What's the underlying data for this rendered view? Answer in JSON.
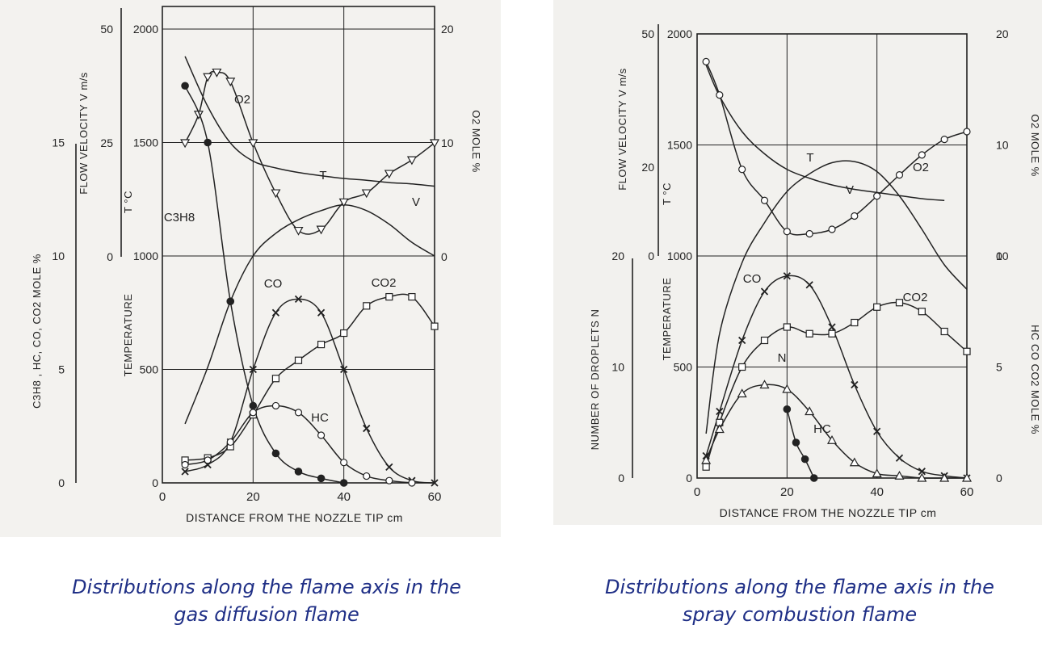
{
  "captions": {
    "left": {
      "line1": "Distributions along the flame axis in the",
      "line2": "gas diffusion flame"
    },
    "right": {
      "line1": "Distributions along the flame axis in the",
      "line2": "spray combustion flame"
    }
  },
  "colors": {
    "ink": "#222222",
    "caption": "#1f2f86",
    "paper": "#f3f2ef"
  },
  "chart_data": [
    {
      "type": "line",
      "xlabel": "DISTANCE FROM THE NOZZLE TIP   cm",
      "xlim": [
        0,
        60
      ],
      "x_ticks": [
        "0",
        "20",
        "40",
        "60"
      ],
      "grid": true,
      "axes": {
        "temperature": {
          "label": "TEMPERATURE",
          "unit": "T °C",
          "ylim": [
            0,
            2000
          ],
          "ticks": [
            "0",
            "500",
            "1000",
            "1500",
            "2000"
          ]
        },
        "species": {
          "label": "C3H8 , HC, CO, CO2   MOLE %",
          "ylim": [
            0,
            20
          ],
          "ticks": [
            "0",
            "5",
            "10",
            "15"
          ]
        },
        "velocity": {
          "label": "FLOW VELOCITY   V m/s",
          "ylim": [
            0,
            50
          ],
          "ticks": [
            "0",
            "25",
            "50"
          ]
        },
        "o2": {
          "label": "O2   MOLE %",
          "ylim": [
            0,
            20
          ],
          "ticks": [
            "0",
            "10",
            "20"
          ]
        }
      },
      "series": [
        {
          "name": "T",
          "axis": "temperature",
          "marker": "none",
          "label": "T",
          "x": [
            5,
            10,
            15,
            20,
            25,
            30,
            35,
            40,
            45,
            50,
            55,
            60
          ],
          "y": [
            260,
            510,
            800,
            1000,
            1100,
            1160,
            1200,
            1225,
            1200,
            1140,
            1060,
            1000
          ]
        },
        {
          "name": "V",
          "axis": "velocity",
          "marker": "none",
          "label": "V",
          "x": [
            5,
            10,
            15,
            20,
            25,
            30,
            35,
            40,
            45,
            50,
            55,
            60
          ],
          "y": [
            44,
            33,
            25,
            21,
            19.5,
            18.5,
            17.8,
            17.2,
            16.8,
            16.3,
            16,
            15.5
          ]
        },
        {
          "name": "O2",
          "axis": "o2",
          "marker": "triangle-down",
          "label": "O2",
          "x": [
            5,
            8,
            10,
            12,
            15,
            20,
            25,
            30,
            35,
            40,
            45,
            50,
            55,
            60
          ],
          "y": [
            10,
            12.5,
            15.8,
            16.2,
            15.4,
            10,
            5.6,
            2.3,
            2.4,
            4.8,
            5.6,
            7.3,
            8.5,
            10
          ]
        },
        {
          "name": "C3H8",
          "axis": "species",
          "marker": "filled-circle",
          "label": "C3H8",
          "x": [
            5,
            10,
            15,
            20,
            25,
            30,
            35,
            40
          ],
          "y": [
            17.5,
            15,
            8,
            3.4,
            1.3,
            0.5,
            0.2,
            0
          ]
        },
        {
          "name": "CO",
          "axis": "species",
          "marker": "x",
          "label": "CO",
          "x": [
            5,
            10,
            15,
            20,
            25,
            30,
            35,
            40,
            45,
            50,
            55,
            60
          ],
          "y": [
            0.5,
            0.8,
            1.8,
            5,
            7.5,
            8.1,
            7.5,
            5,
            2.4,
            0.7,
            0.1,
            0
          ]
        },
        {
          "name": "CO2",
          "axis": "species",
          "marker": "square",
          "label": "CO2",
          "x": [
            5,
            10,
            15,
            20,
            25,
            30,
            35,
            40,
            45,
            50,
            55,
            60
          ],
          "y": [
            1,
            1.1,
            1.6,
            3,
            4.6,
            5.4,
            6.1,
            6.6,
            7.8,
            8.2,
            8.2,
            6.9
          ]
        },
        {
          "name": "HC",
          "axis": "species",
          "marker": "circle",
          "label": "HC",
          "x": [
            5,
            10,
            15,
            20,
            25,
            30,
            35,
            40,
            45,
            50,
            55
          ],
          "y": [
            0.8,
            1,
            1.8,
            3.1,
            3.4,
            3.1,
            2.1,
            0.9,
            0.3,
            0.1,
            0
          ]
        }
      ]
    },
    {
      "type": "line",
      "xlabel": "DISTANCE FROM THE NOZZLE TIP   cm",
      "xlim": [
        0,
        60
      ],
      "x_ticks": [
        "0",
        "20",
        "40",
        "60"
      ],
      "grid": true,
      "axes": {
        "temperature": {
          "label": "TEMPERATURE",
          "unit": "T °C",
          "ylim": [
            0,
            2000
          ],
          "ticks": [
            "0",
            "500",
            "1000",
            "1500",
            "2000"
          ]
        },
        "droplets": {
          "label": "NUMBER OF DROPLETS   N",
          "ylim": [
            0,
            20
          ],
          "ticks": [
            "0",
            "10",
            "20"
          ]
        },
        "velocity": {
          "label": "FLOW VELOCITY   V m/s",
          "ylim": [
            0,
            50
          ],
          "ticks": [
            "0",
            "20",
            "50"
          ]
        },
        "o2": {
          "label": "O2   MOLE %",
          "ylim": [
            0,
            20
          ],
          "ticks": [
            "0",
            "10",
            "20"
          ]
        },
        "species": {
          "label": "HC  CO  CO2   MOLE %",
          "ylim": [
            0,
            10
          ],
          "ticks": [
            "0",
            "5",
            "10"
          ]
        }
      },
      "series": [
        {
          "name": "T",
          "axis": "temperature",
          "marker": "none",
          "label": "T",
          "x": [
            2,
            5,
            10,
            15,
            20,
            25,
            30,
            35,
            40,
            45,
            50,
            55,
            60
          ],
          "y": [
            200,
            650,
            970,
            1150,
            1290,
            1370,
            1420,
            1425,
            1380,
            1270,
            1120,
            960,
            850
          ]
        },
        {
          "name": "V",
          "axis": "velocity",
          "marker": "none",
          "label": "V",
          "x": [
            2,
            5,
            10,
            15,
            20,
            25,
            30,
            35,
            40,
            45,
            50,
            55
          ],
          "y": [
            43,
            36,
            28,
            23,
            19.5,
            17.5,
            16,
            15,
            14.3,
            13.6,
            12.9,
            12.5
          ]
        },
        {
          "name": "O2",
          "axis": "o2",
          "marker": "circle",
          "label": "O2",
          "x": [
            2,
            5,
            10,
            15,
            20,
            25,
            30,
            35,
            40,
            45,
            50,
            55,
            60
          ],
          "y": [
            17.5,
            14.5,
            7.8,
            5,
            2.2,
            2,
            2.4,
            3.6,
            5.4,
            7.3,
            9.1,
            10.5,
            11.2
          ]
        },
        {
          "name": "CO",
          "axis": "species",
          "marker": "x",
          "label": "CO",
          "x": [
            2,
            5,
            10,
            15,
            20,
            25,
            30,
            35,
            40,
            45,
            50,
            55,
            60
          ],
          "y": [
            1,
            3,
            6.2,
            8.4,
            9.1,
            8.7,
            6.8,
            4.2,
            2.1,
            0.9,
            0.3,
            0.1,
            0
          ]
        },
        {
          "name": "CO2",
          "axis": "species",
          "marker": "square",
          "label": "CO2",
          "x": [
            2,
            5,
            10,
            15,
            20,
            25,
            30,
            35,
            40,
            45,
            50,
            55,
            60
          ],
          "y": [
            0.5,
            2.5,
            5,
            6.2,
            6.8,
            6.5,
            6.5,
            7,
            7.7,
            7.9,
            7.5,
            6.6,
            5.7
          ]
        },
        {
          "name": "HC",
          "axis": "species",
          "marker": "triangle-up",
          "label": "HC",
          "x": [
            2,
            5,
            10,
            15,
            20,
            25,
            30,
            35,
            40,
            45,
            50,
            55,
            60
          ],
          "y": [
            0.8,
            2.2,
            3.8,
            4.2,
            4,
            3,
            1.7,
            0.7,
            0.2,
            0.1,
            0,
            0,
            0
          ]
        },
        {
          "name": "N",
          "axis": "droplets",
          "marker": "filled-circle",
          "label": "N",
          "x": [
            20,
            22,
            24,
            26
          ],
          "y": [
            6.2,
            3.2,
            1.7,
            0
          ]
        }
      ]
    }
  ]
}
